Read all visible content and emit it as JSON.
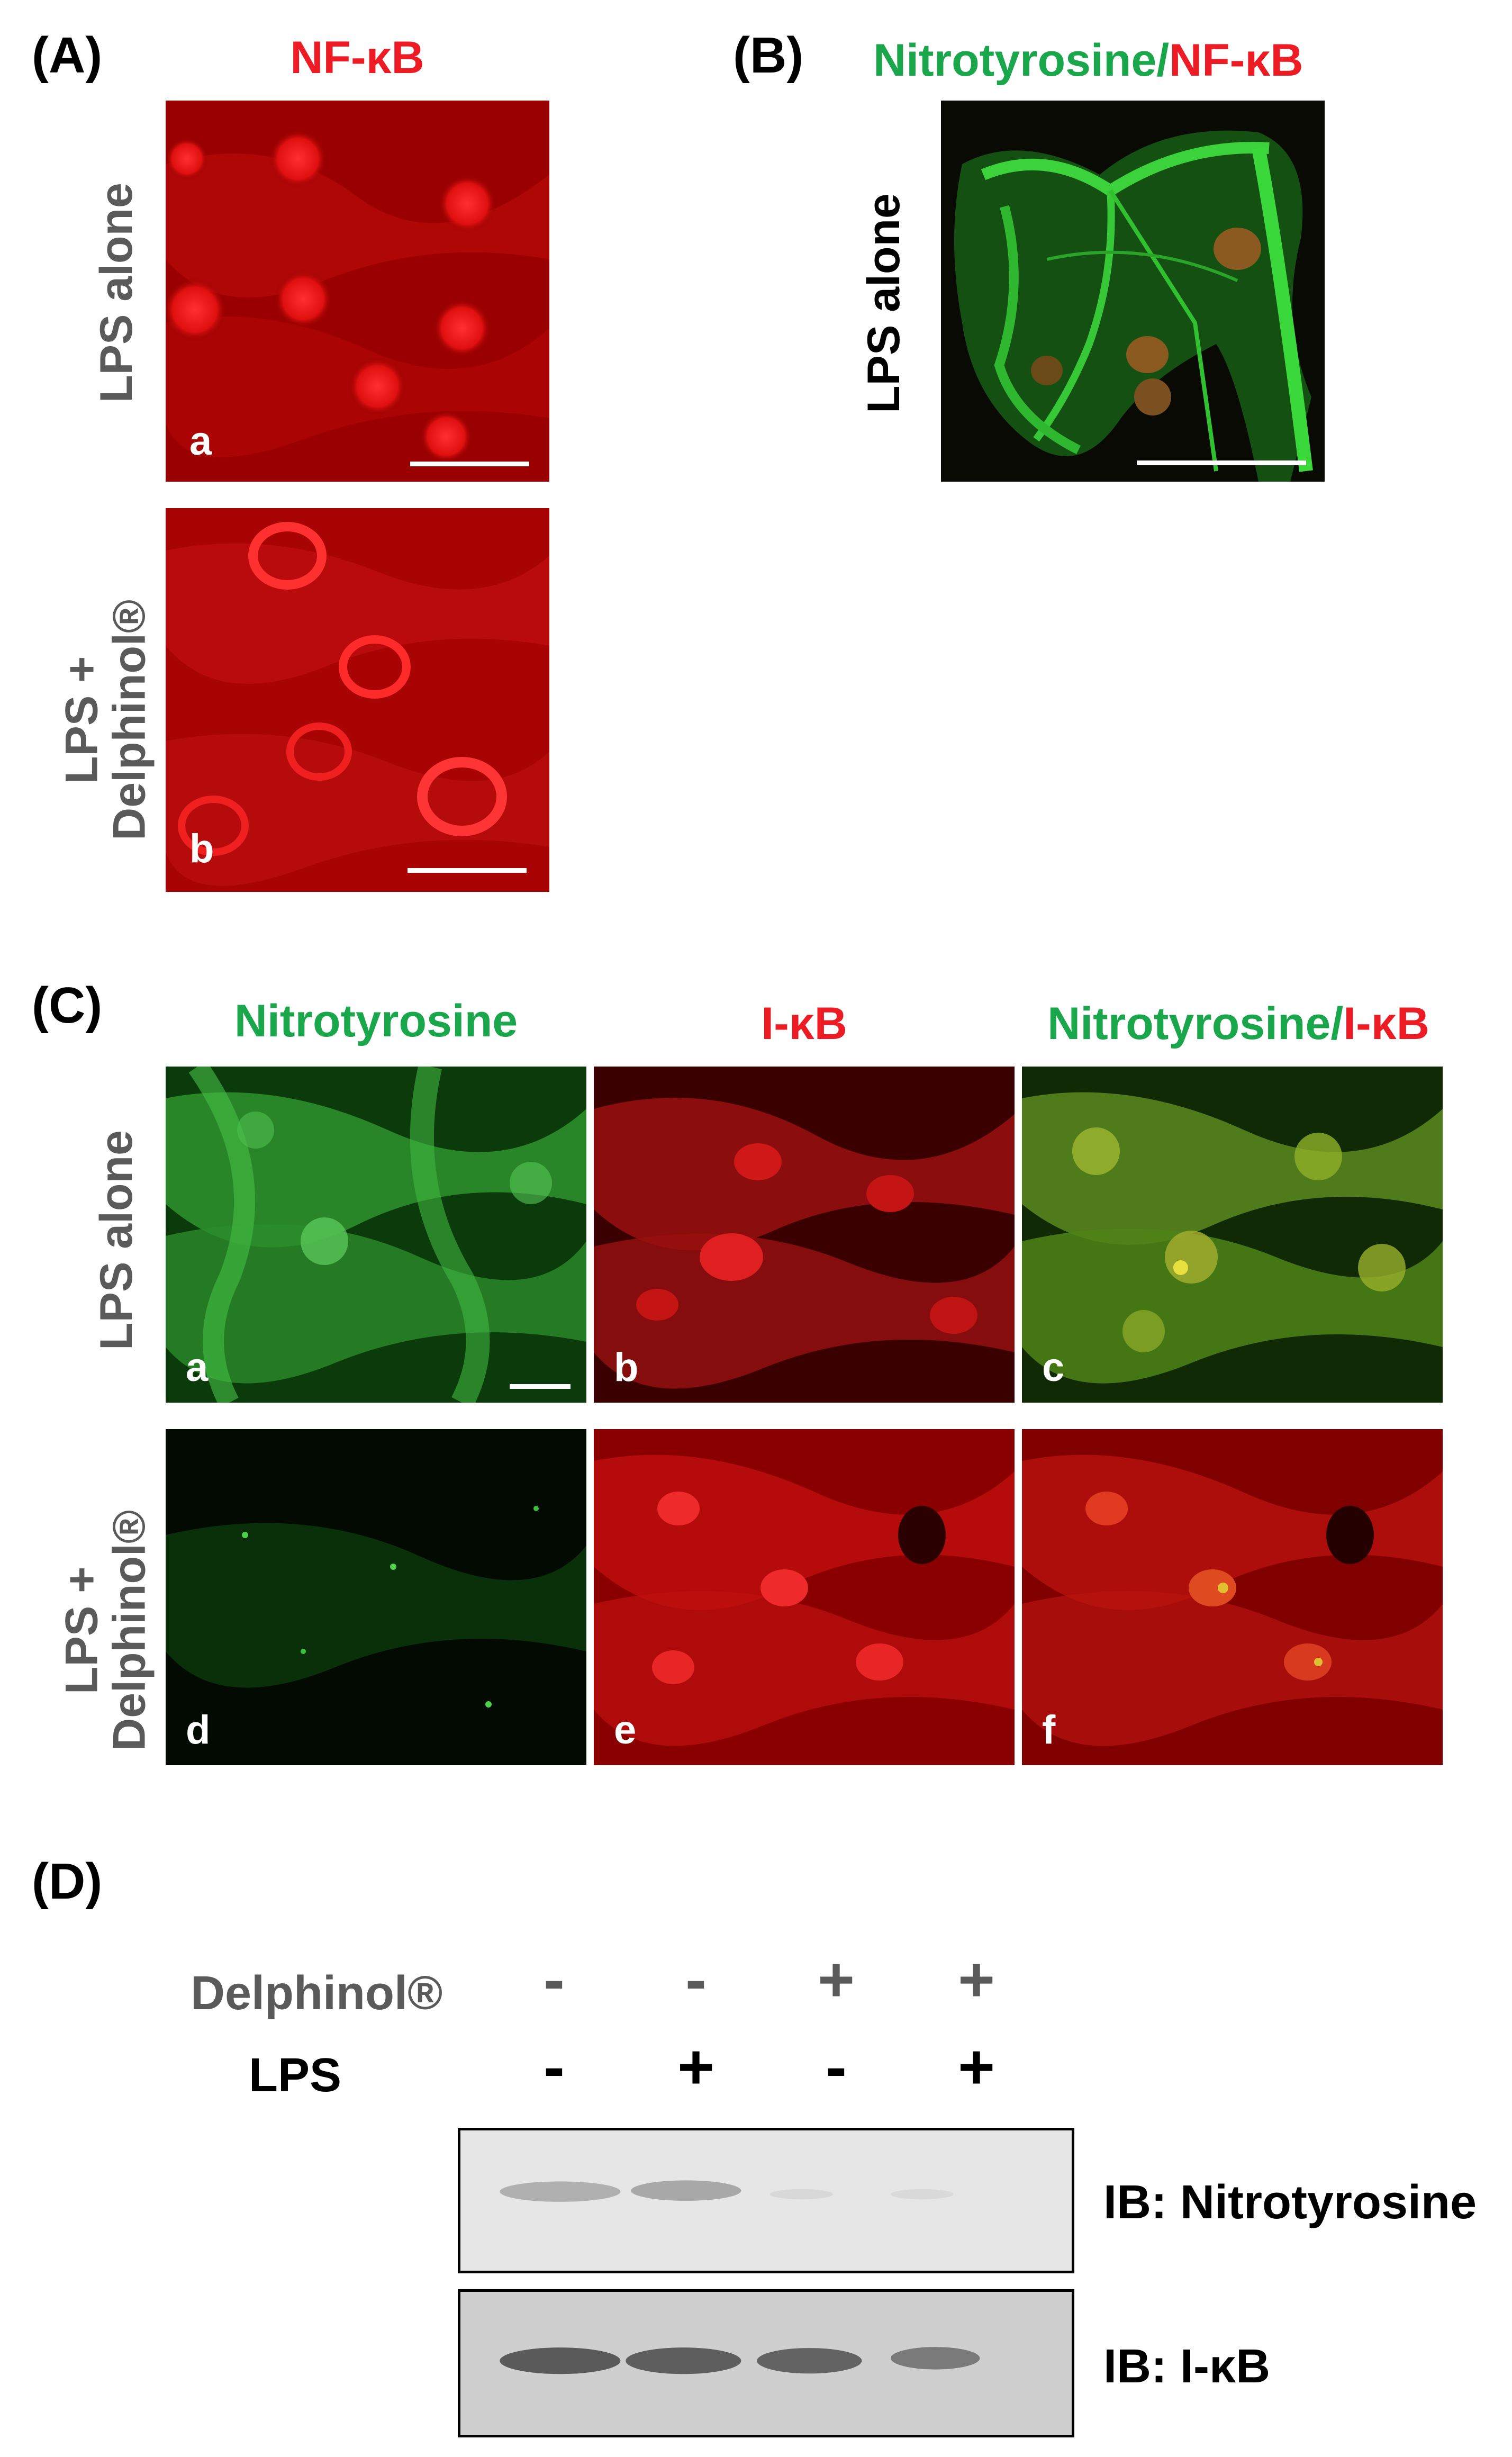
{
  "panel_A": {
    "letter_open": "(",
    "letter": "A",
    "letter_close": ")",
    "header": "NF-κB",
    "row_labels": [
      "LPS alone",
      "LPS +",
      "Delphinol®"
    ],
    "sub_labels": [
      "a",
      "b"
    ]
  },
  "panel_B": {
    "letter_open": "(",
    "letter": "B",
    "letter_close": ")",
    "header_green": "Nitrotyrosine/",
    "header_red": "NF-κB",
    "row_label": "LPS alone"
  },
  "panel_C": {
    "letter_open": "(",
    "letter": "C",
    "letter_close": ")",
    "headers": {
      "col1": "Nitrotyrosine",
      "col2": "I-κB",
      "col3_green": "Nitrotyrosine/",
      "col3_red": "I-κB"
    },
    "row_labels": [
      "LPS alone",
      "LPS +",
      "Delphinol®"
    ],
    "sub_labels": [
      "a",
      "b",
      "c",
      "d",
      "e",
      "f"
    ]
  },
  "panel_D": {
    "letter_open": "(",
    "letter": "D",
    "letter_close": ")",
    "row1_label": "Delphinol®",
    "row2_label": "LPS",
    "row1_signs": [
      "-",
      "-",
      "+",
      "+"
    ],
    "row2_signs": [
      "-",
      "+",
      "-",
      "+"
    ],
    "blot_labels": [
      "IB: Nitrotyrosine",
      "IB: I-κB"
    ]
  },
  "colors": {
    "red": "#ed1c24",
    "green": "#1aa64b",
    "gray": "#5a5a5a"
  }
}
